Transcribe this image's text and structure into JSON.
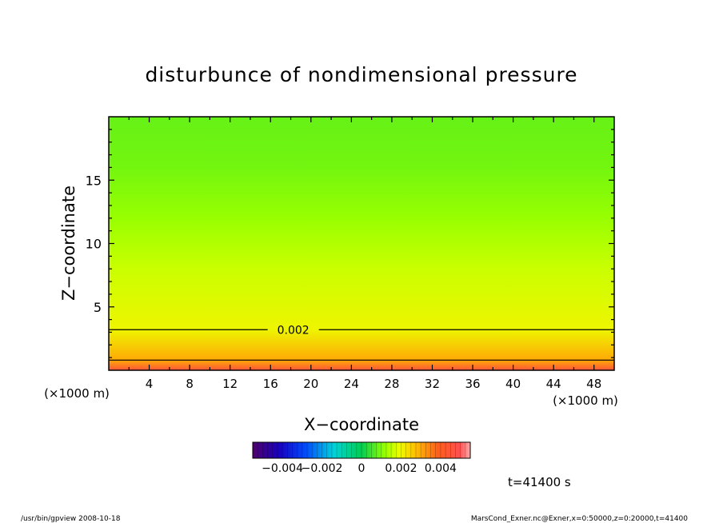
{
  "chart_data": {
    "type": "heatmap",
    "title": "disturbunce of nondimensional pressure",
    "xlabel": "X−coordinate",
    "ylabel": "Z−coordinate",
    "x_unit_left": "(×1000 m)",
    "x_unit_right": "(×1000 m)",
    "xlim": [
      0,
      50
    ],
    "ylim": [
      0,
      20
    ],
    "x_ticks": [
      4,
      8,
      12,
      16,
      20,
      24,
      28,
      32,
      36,
      40,
      44,
      48
    ],
    "y_ticks": [
      5,
      10,
      15
    ],
    "contours": [
      {
        "level": 0.002,
        "label": "0.002",
        "z": 3.2
      },
      {
        "level": 0.003,
        "label": "",
        "z": 0.8
      }
    ],
    "field_profile": [
      {
        "z": 0,
        "value": 0.0045
      },
      {
        "z": 0.8,
        "value": 0.003
      },
      {
        "z": 3.2,
        "value": 0.002
      },
      {
        "z": 8,
        "value": 0.0016
      },
      {
        "z": 12,
        "value": 0.0012
      },
      {
        "z": 16,
        "value": 0.0009
      },
      {
        "z": 20,
        "value": 0.0008
      }
    ],
    "colorbar": {
      "min": -0.0055,
      "max": 0.0055,
      "tick_labels": [
        "−0.004",
        "−0.002",
        "0",
        "0.002",
        "0.004"
      ],
      "tick_values": [
        -0.004,
        -0.002,
        0,
        0.002,
        0.004
      ]
    }
  },
  "annotations": {
    "time": "t=41400 s",
    "footer_left": "/usr/bin/gpview   2008-10-18",
    "footer_right": "MarsCond_Exner.nc@Exner,x=0:50000,z=0:20000,t=41400"
  }
}
